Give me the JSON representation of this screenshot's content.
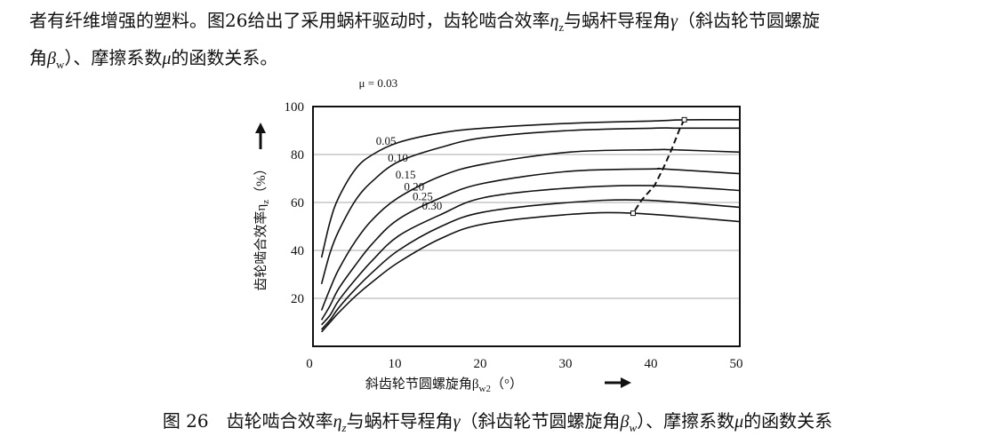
{
  "paragraph": {
    "line1_a": "者有纤维增强的塑料。图26给出了采用蜗杆驱动时，齿轮啮合效率",
    "eta_symbol": "η",
    "eta_sub": "z",
    "line1_b": "与蜗杆导程角",
    "gamma_symbol": "γ",
    "line1_c": "（斜齿轮节圆螺旋",
    "line2_a": "角",
    "beta_symbol": "β",
    "beta_sub": "w",
    "line2_b": "）、摩擦系数",
    "mu_symbol": "μ",
    "line2_c": "的函数关系。"
  },
  "caption": {
    "prefix": "图 26",
    "text_a": "齿轮啮合效率",
    "eta_symbol": "η",
    "eta_sub": "z",
    "text_b": "与蜗杆导程角",
    "gamma_symbol": "γ",
    "text_c": "（斜齿轮节圆螺旋角",
    "beta_symbol": "β",
    "beta_sub": "w",
    "text_d": "）、摩擦系数",
    "mu_symbol": "μ",
    "text_e": "的函数关系"
  },
  "chart_data": {
    "type": "line",
    "ylabel": "齿轮啮合效率η",
    "ylabel_sub": "z",
    "ylabel_unit": "（%）",
    "xlabel": "斜齿轮节圆螺旋角β",
    "xlabel_sub": "w2",
    "xlabel_unit": "（°）",
    "xlim": [
      0,
      50
    ],
    "ylim": [
      0,
      100
    ],
    "xticks": [
      0,
      10,
      20,
      30,
      40,
      50
    ],
    "yticks": [
      20,
      40,
      60,
      80,
      100
    ],
    "grid": "horizontal",
    "line_color": "#111111",
    "series": [
      {
        "name": "μ = 0.03",
        "x": [
          1,
          2,
          3,
          5,
          7,
          10,
          15,
          20,
          30,
          40,
          43.5,
          50
        ],
        "y": [
          37,
          52,
          62,
          74,
          80,
          85,
          89,
          91,
          93,
          94,
          94.5,
          94.5
        ]
      },
      {
        "name": "0.05",
        "x": [
          1,
          2,
          3,
          5,
          7,
          10,
          15,
          20,
          30,
          40,
          43,
          50
        ],
        "y": [
          26,
          39,
          48,
          61,
          69,
          77,
          83,
          87,
          90,
          91,
          91,
          91
        ]
      },
      {
        "name": "0.10",
        "x": [
          1,
          2,
          3,
          5,
          7,
          10,
          15,
          20,
          30,
          40,
          42,
          50
        ],
        "y": [
          15,
          24,
          32,
          44,
          53,
          62,
          71,
          76,
          81,
          82,
          82,
          81
        ]
      },
      {
        "name": "0.15",
        "x": [
          1,
          2,
          3,
          5,
          7,
          10,
          15,
          20,
          30,
          40,
          41,
          50
        ],
        "y": [
          11,
          17,
          24,
          34,
          43,
          53,
          62,
          68,
          73,
          74,
          74,
          72
        ]
      },
      {
        "name": "0.20",
        "x": [
          1,
          2,
          3,
          5,
          7,
          10,
          15,
          20,
          30,
          40,
          50
        ],
        "y": [
          9,
          13,
          19,
          28,
          36,
          46,
          55,
          62,
          66,
          67,
          65
        ]
      },
      {
        "name": "0.25",
        "x": [
          1,
          2,
          3,
          5,
          7,
          10,
          15,
          20,
          30,
          38.5,
          50
        ],
        "y": [
          7,
          11,
          16,
          24,
          31,
          40,
          50,
          56,
          60,
          61,
          58
        ]
      },
      {
        "name": "0.30",
        "x": [
          1,
          2,
          3,
          5,
          7,
          10,
          15,
          20,
          30,
          37.5,
          50
        ],
        "y": [
          6,
          10,
          14,
          21,
          27,
          35,
          45,
          51,
          55,
          55.5,
          52
        ]
      }
    ],
    "maxima": {
      "x": [
        43.5,
        43,
        42,
        41,
        40,
        38.5,
        37.5
      ],
      "y": [
        94.5,
        91,
        82,
        74,
        67,
        61,
        55.5
      ]
    }
  }
}
